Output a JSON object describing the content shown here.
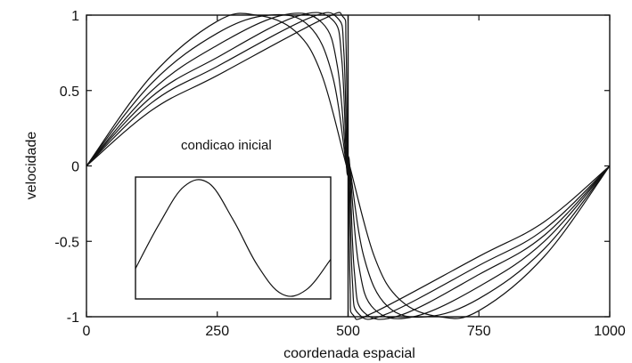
{
  "chart_data": [
    {
      "type": "line",
      "title": "",
      "xlabel": "coordenada espacial",
      "ylabel": "velocidade",
      "xlim": [
        0,
        1000
      ],
      "ylim": [
        -1,
        1
      ],
      "xticks": [
        "0",
        "250",
        "500",
        "750",
        "1000"
      ],
      "yticks": [
        "1",
        "0.5",
        "0",
        "-0.5",
        "-1"
      ],
      "grid": false,
      "legend": "none",
      "annotation": "condicao inicial",
      "color": "#111111",
      "series": [
        {
          "x": [
            0,
            125,
            250,
            325,
            400,
            450,
            497,
            500,
            503,
            550,
            600,
            675,
            750,
            875,
            1000
          ],
          "values": [
            0,
            0.6,
            0.96,
            1.0,
            0.89,
            0.6,
            0.0,
            0.0,
            0.0,
            -0.6,
            -0.89,
            -1.0,
            -0.96,
            -0.6,
            0
          ]
        },
        {
          "x": [
            0,
            125,
            250,
            350,
            425,
            470,
            497,
            500,
            503,
            530,
            575,
            650,
            750,
            875,
            1000
          ],
          "values": [
            0,
            0.55,
            0.88,
            1.0,
            0.93,
            0.6,
            0.0,
            0.0,
            0.0,
            -0.6,
            -0.93,
            -1.0,
            -0.88,
            -0.55,
            0
          ]
        },
        {
          "x": [
            0,
            125,
            250,
            375,
            450,
            480,
            497,
            500,
            503,
            520,
            550,
            625,
            750,
            875,
            1000
          ],
          "values": [
            0,
            0.5,
            0.8,
            1.0,
            0.95,
            0.65,
            0.0,
            0.0,
            0.0,
            -0.65,
            -0.95,
            -1.0,
            -0.8,
            -0.5,
            0
          ]
        },
        {
          "x": [
            0,
            125,
            250,
            400,
            470,
            488,
            497,
            500,
            503,
            512,
            530,
            600,
            750,
            875,
            1000
          ],
          "values": [
            0,
            0.46,
            0.72,
            0.99,
            0.97,
            0.7,
            0.0,
            0.0,
            0.0,
            -0.7,
            -0.97,
            -0.99,
            -0.72,
            -0.46,
            0
          ]
        },
        {
          "x": [
            0,
            125,
            250,
            425,
            480,
            492,
            498,
            500,
            502,
            508,
            520,
            575,
            750,
            875,
            1000
          ],
          "values": [
            0,
            0.42,
            0.66,
            0.98,
            0.98,
            0.75,
            0.0,
            0.0,
            0.0,
            -0.75,
            -0.98,
            -0.98,
            -0.66,
            -0.42,
            0
          ]
        },
        {
          "x": [
            0,
            125,
            250,
            450,
            490,
            496,
            499,
            500,
            501,
            504,
            510,
            550,
            750,
            875,
            1000
          ],
          "values": [
            0,
            0.37,
            0.6,
            0.97,
            0.99,
            0.8,
            0.0,
            0.0,
            0.0,
            -0.8,
            -0.99,
            -0.97,
            -0.6,
            -0.37,
            0
          ]
        }
      ]
    },
    {
      "type": "line",
      "title": "",
      "xlabel": "",
      "ylabel": "",
      "grid": false,
      "series": [
        {
          "x": [
            0,
            0.25,
            0.5,
            0.75,
            1,
            1.25,
            1.5,
            1.75,
            2
          ],
          "values": [
            -0.5,
            0.25,
            0.85,
            0.9,
            0.3,
            -0.45,
            -0.92,
            -0.85,
            -0.35
          ]
        }
      ]
    }
  ]
}
